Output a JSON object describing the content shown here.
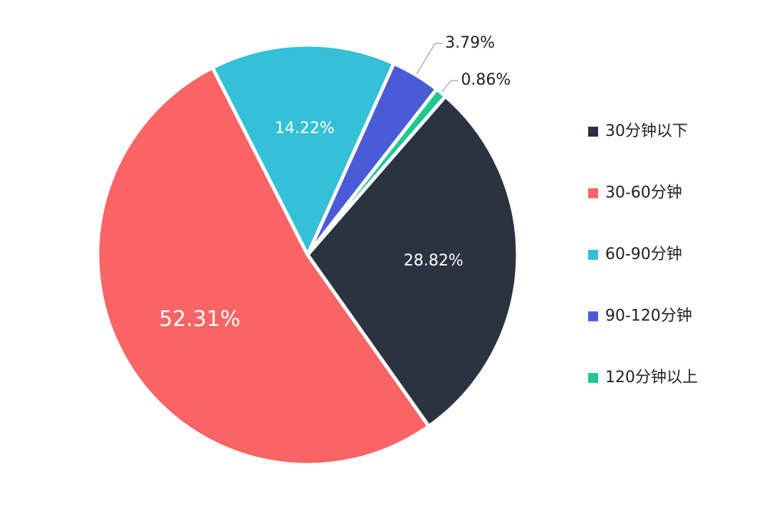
{
  "chart_data": {
    "type": "pie",
    "categories": [
      "30分钟以下",
      "30-60分钟",
      "60-90分钟",
      "90-120分钟",
      "120分钟以上"
    ],
    "values": [
      28.82,
      52.31,
      14.22,
      3.79,
      0.86
    ],
    "value_labels": [
      "28.82%",
      "52.31%",
      "14.22%",
      "3.79%",
      "0.86%"
    ],
    "colors": [
      "#2b3240",
      "#fa6464",
      "#34c0d6",
      "#4a5bd8",
      "#1ec98f"
    ],
    "legend": "right"
  }
}
